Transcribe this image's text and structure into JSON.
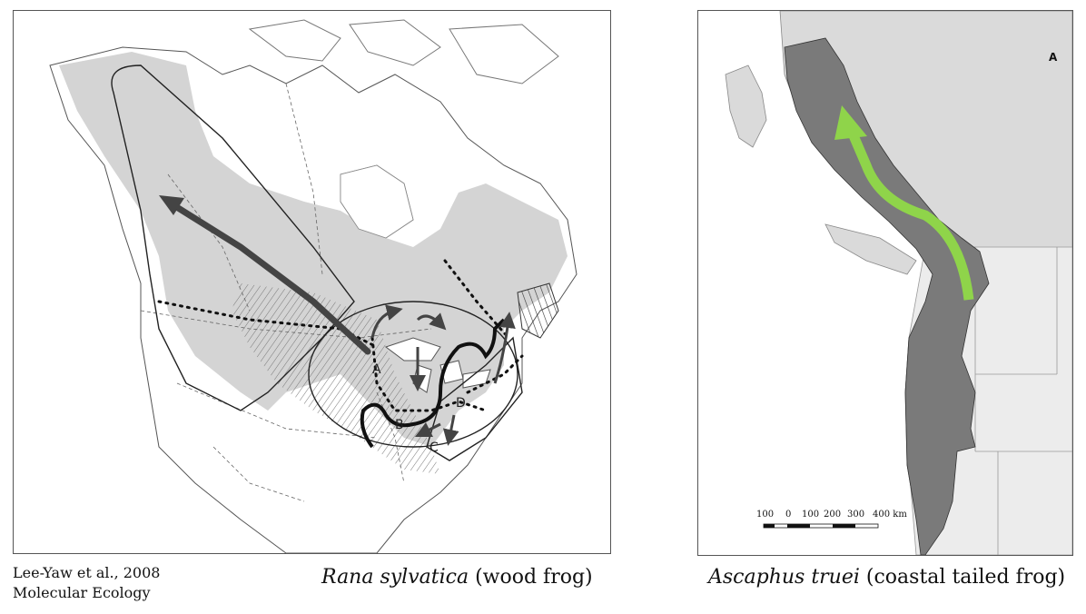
{
  "left_map": {
    "site_labels": [
      "A",
      "B",
      "C",
      "D"
    ],
    "citation": {
      "line1": "Lee-Yaw et al., 2008",
      "line2": "Molecular Ecology"
    },
    "caption": {
      "species": "Rana sylvatica",
      "common": "(wood frog)"
    }
  },
  "right_map": {
    "north_arrow": "A",
    "scale_labels": [
      "100",
      "0",
      "100",
      "200",
      "300",
      "400 km"
    ],
    "arrow_color": "#8fd44a",
    "caption": {
      "species": "Ascaphus truei",
      "common": "(coastal tailed frog)"
    }
  },
  "colors": {
    "range_fill": "#d4d4d4",
    "range_dark": "#7a7a7a",
    "arrow_dark": "#444444"
  }
}
